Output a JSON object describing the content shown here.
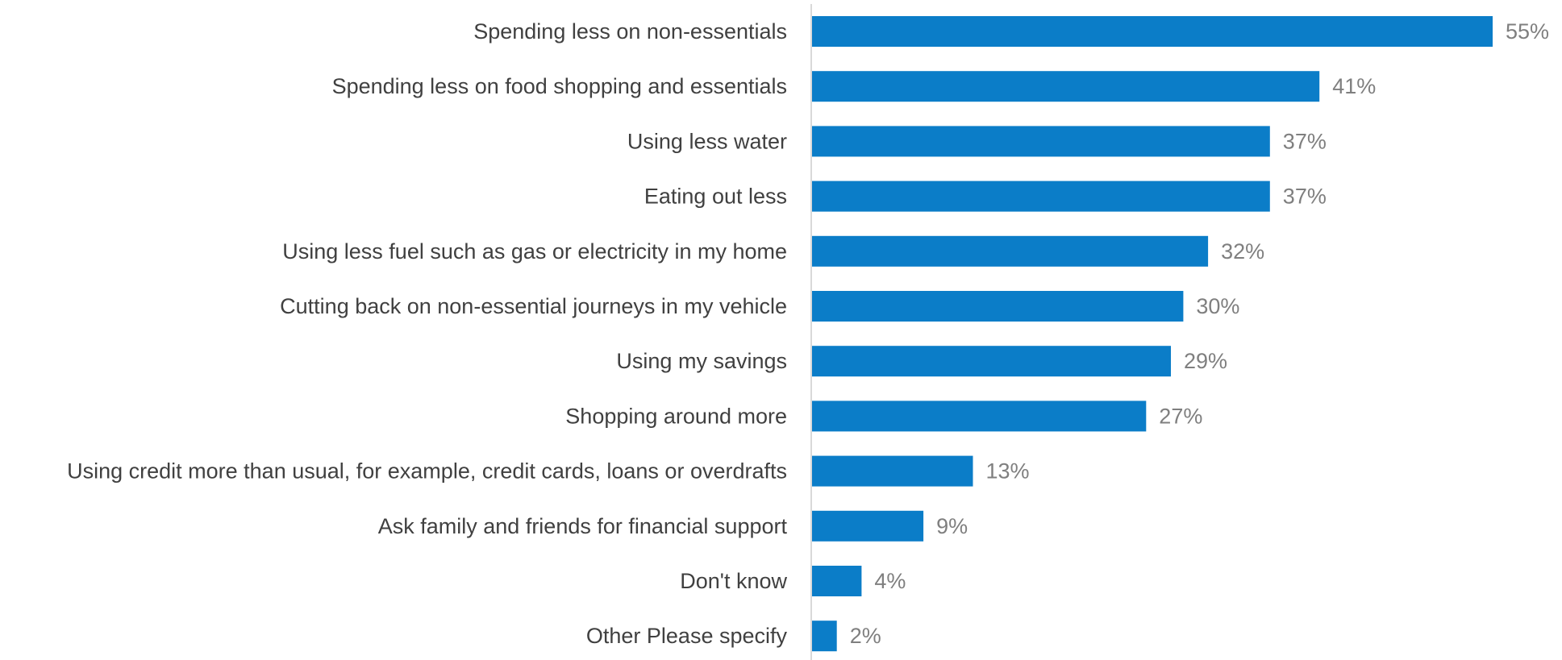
{
  "chart_data": {
    "type": "bar",
    "orientation": "horizontal",
    "categories": [
      "Spending less on non-essentials",
      "Spending less on food shopping and essentials",
      "Using less water",
      "Eating out less",
      "Using less fuel such as gas or electricity in my home",
      "Cutting back on non-essential journeys in my vehicle",
      "Using my savings",
      "Shopping around more",
      "Using credit more than usual, for example, credit cards, loans or overdrafts",
      "Ask family and friends for financial support",
      "Don't know",
      "Other Please specify"
    ],
    "values": [
      55,
      41,
      37,
      37,
      32,
      30,
      29,
      27,
      13,
      9,
      4,
      2
    ],
    "value_labels": [
      "55%",
      "41%",
      "37%",
      "37%",
      "32%",
      "30%",
      "29%",
      "27%",
      "13%",
      "9%",
      "4%",
      "2%"
    ],
    "xlim": [
      0,
      55
    ],
    "grid": false,
    "legend": "none",
    "bar_color": "#0b7dc8"
  }
}
